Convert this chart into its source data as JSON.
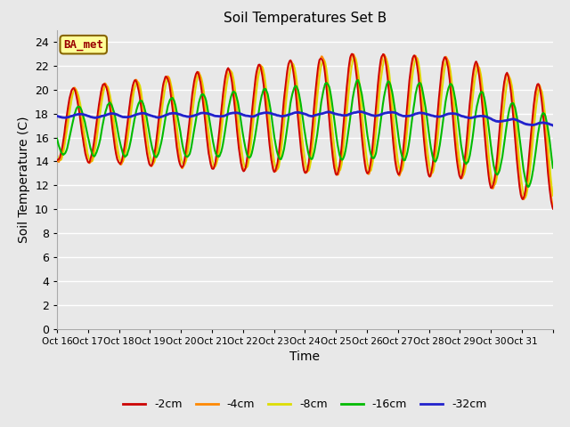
{
  "title": "Soil Temperatures Set B",
  "xlabel": "Time",
  "ylabel": "Soil Temperature (C)",
  "ylim": [
    0,
    25
  ],
  "yticks": [
    0,
    2,
    4,
    6,
    8,
    10,
    12,
    14,
    16,
    18,
    20,
    22,
    24
  ],
  "n_days": 16,
  "start_day": 16,
  "bg_color": "#e8e8e8",
  "grid_color": "#ffffff",
  "colors": {
    "-2cm": "#cc0000",
    "-4cm": "#ff8800",
    "-8cm": "#dddd00",
    "-16cm": "#00bb00",
    "-32cm": "#2222cc"
  },
  "annotation_text": "BA_met",
  "annotation_fg": "#990000",
  "annotation_bg": "#ffff99",
  "annotation_border": "#886600",
  "legend_labels": [
    "-2cm",
    "-4cm",
    "-8cm",
    "-16cm",
    "-32cm"
  ]
}
